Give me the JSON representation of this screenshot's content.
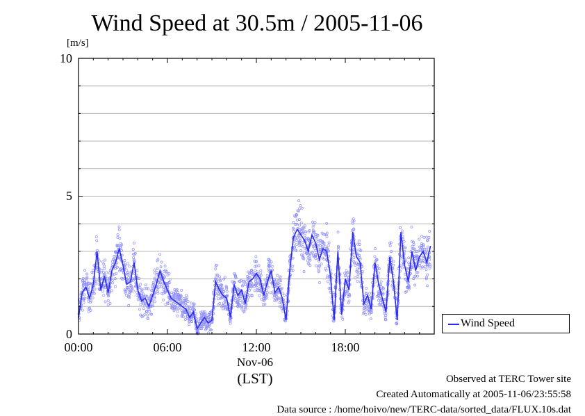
{
  "title": "Wind Speed at 30.5m / 2005-11-06",
  "y_unit": "[m/s]",
  "y_ticks": [
    "10",
    "5",
    "0"
  ],
  "x_ticks": [
    "00:00",
    "06:00",
    "12:00",
    "18:00"
  ],
  "x_date": "Nov-06",
  "x_axis_note": "(LST)",
  "legend": {
    "label": "Wind Speed"
  },
  "footer": {
    "line1": "Observed at TERC Tower site",
    "line2": "Created Automatically at 2005-11-06/23:55:58",
    "line3": "Data source : /home/hoivo/new/TERC-data/sorted_data/FLUX.10s.dat"
  },
  "colors": {
    "line": "#2a2af0",
    "points": "#8c8cff",
    "grid": "#b4b4b4"
  },
  "chart_data": {
    "type": "line",
    "title": "Wind Speed at 30.5m / 2005-11-06",
    "ylabel": "[m/s]",
    "xlabel": "(LST)",
    "ylim": [
      0,
      10
    ],
    "xlim": [
      0,
      24
    ],
    "x_unit": "hours",
    "grid": true,
    "legend_position": "bottom-right outside",
    "series": [
      {
        "name": "Wind Speed",
        "x": [
          0.0,
          0.25,
          0.5,
          0.75,
          1.0,
          1.25,
          1.5,
          1.75,
          2.0,
          2.25,
          2.5,
          2.75,
          3.0,
          3.25,
          3.5,
          3.75,
          4.0,
          4.25,
          4.5,
          4.75,
          5.0,
          5.25,
          5.5,
          5.75,
          6.0,
          6.25,
          6.5,
          6.75,
          7.0,
          7.25,
          7.5,
          7.75,
          8.0,
          8.25,
          8.5,
          8.75,
          9.0,
          9.25,
          9.5,
          9.75,
          10.0,
          10.25,
          10.5,
          10.75,
          11.0,
          11.25,
          11.5,
          11.75,
          12.0,
          12.25,
          12.5,
          12.75,
          13.0,
          13.25,
          13.5,
          13.75,
          14.0,
          14.25,
          14.5,
          14.75,
          15.0,
          15.25,
          15.5,
          15.75,
          16.0,
          16.25,
          16.5,
          16.75,
          17.0,
          17.25,
          17.5,
          17.75,
          18.0,
          18.25,
          18.5,
          18.75,
          19.0,
          19.25,
          19.5,
          19.75,
          20.0,
          20.25,
          20.5,
          20.75,
          21.0,
          21.25,
          21.5,
          21.75,
          22.0,
          22.25,
          22.5,
          22.75,
          23.0,
          23.25,
          23.5,
          23.75
        ],
        "y": [
          0.6,
          1.5,
          1.7,
          1.3,
          1.8,
          3.0,
          1.6,
          2.1,
          1.5,
          2.3,
          2.6,
          3.1,
          2.5,
          1.8,
          1.9,
          2.6,
          1.6,
          1.2,
          1.3,
          1.0,
          1.4,
          1.8,
          2.3,
          1.9,
          1.6,
          1.3,
          1.2,
          1.1,
          1.0,
          0.9,
          0.6,
          0.8,
          0.2,
          0.4,
          0.6,
          0.4,
          0.5,
          1.9,
          1.6,
          1.4,
          1.3,
          0.6,
          1.8,
          1.4,
          1.6,
          1.1,
          1.9,
          2.0,
          2.2,
          2.0,
          1.4,
          1.9,
          2.3,
          1.5,
          1.7,
          1.3,
          0.5,
          2.3,
          3.5,
          3.8,
          3.6,
          3.4,
          3.0,
          3.6,
          3.3,
          2.7,
          3.1,
          3.0,
          2.1,
          0.5,
          3.0,
          0.7,
          2.0,
          1.6,
          3.7,
          2.8,
          2.6,
          1.1,
          1.4,
          0.9,
          2.6,
          1.8,
          1.3,
          0.8,
          2.8,
          1.9,
          0.5,
          3.7,
          2.5,
          1.9,
          3.0,
          2.3,
          2.8,
          3.0,
          2.6,
          3.2
        ]
      }
    ],
    "scatter_spread": 0.6
  }
}
